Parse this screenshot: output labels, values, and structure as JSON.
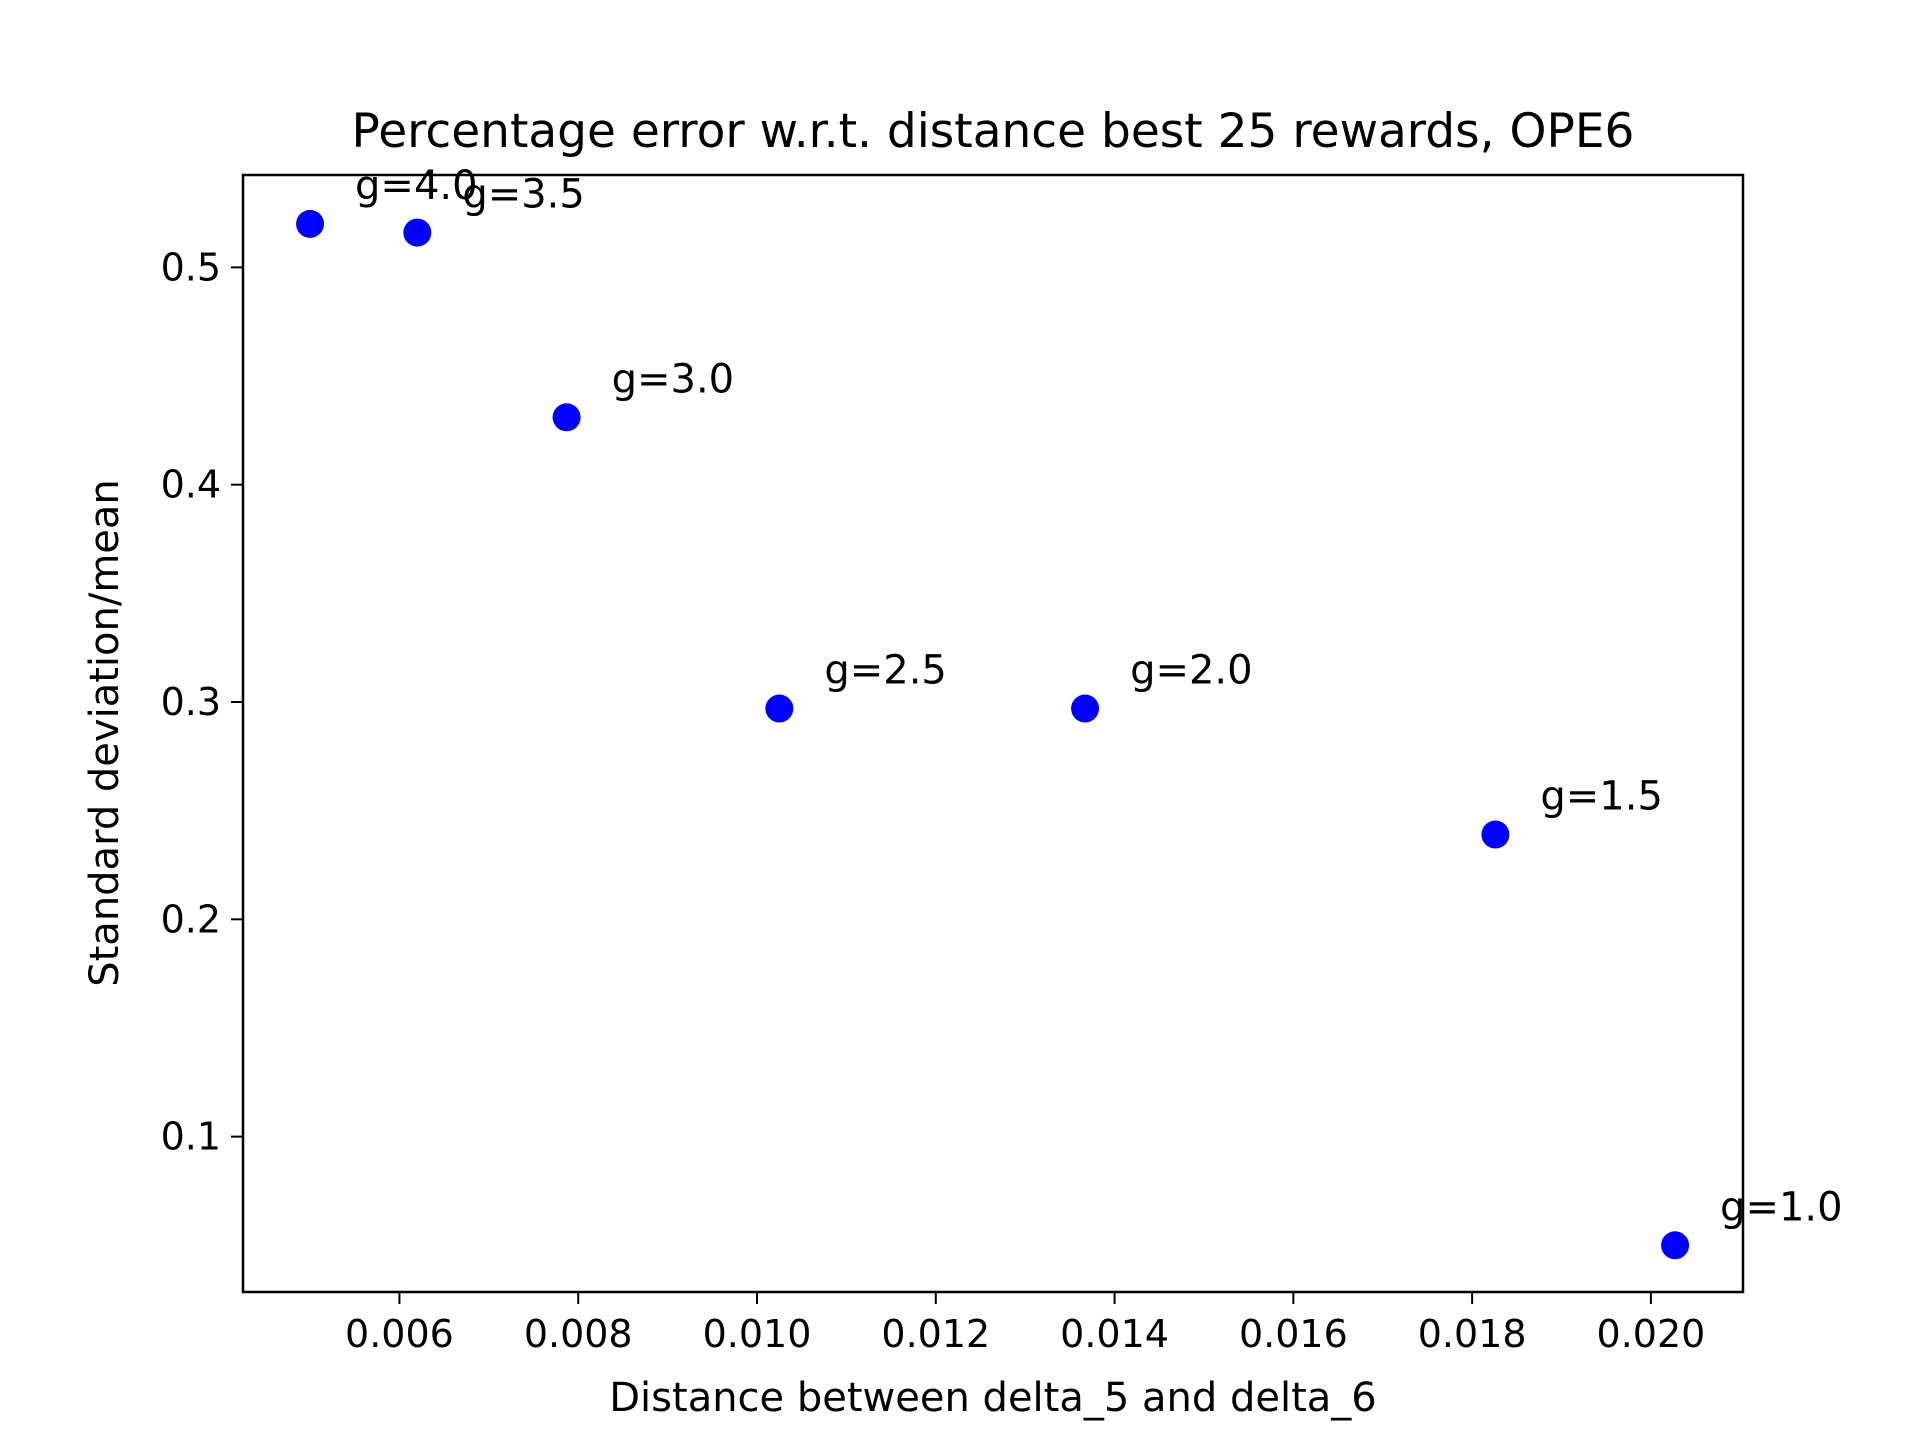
{
  "chart_data": {
    "type": "scatter",
    "title": "Percentage error w.r.t. distance best 25 rewards, OPE6",
    "xlabel": "Distance between delta_5 and delta_6",
    "ylabel": "Standard deviation/mean",
    "xlim": [
      0.00425,
      0.02103
    ],
    "ylim": [
      0.0285,
      0.5425
    ],
    "x_ticks": [
      0.006,
      0.008,
      0.01,
      0.012,
      0.014,
      0.016,
      0.018,
      0.02
    ],
    "x_tick_labels": [
      "0.006",
      "0.008",
      "0.010",
      "0.012",
      "0.014",
      "0.016",
      "0.018",
      "0.020"
    ],
    "y_ticks": [
      0.1,
      0.2,
      0.3,
      0.4,
      0.5
    ],
    "y_tick_labels": [
      "0.1",
      "0.2",
      "0.3",
      "0.4",
      "0.5"
    ],
    "grid": false,
    "marker_color": "#0000ff",
    "points": [
      {
        "x": 0.005,
        "y": 0.52,
        "label": "g=4.0"
      },
      {
        "x": 0.0062,
        "y": 0.516,
        "label": "g=3.5"
      },
      {
        "x": 0.00787,
        "y": 0.431,
        "label": "g=3.0"
      },
      {
        "x": 0.01025,
        "y": 0.297,
        "label": "g=2.5"
      },
      {
        "x": 0.01367,
        "y": 0.297,
        "label": "g=2.0"
      },
      {
        "x": 0.01826,
        "y": 0.239,
        "label": "g=1.5"
      },
      {
        "x": 0.02027,
        "y": 0.05,
        "label": "g=1.0"
      }
    ]
  }
}
